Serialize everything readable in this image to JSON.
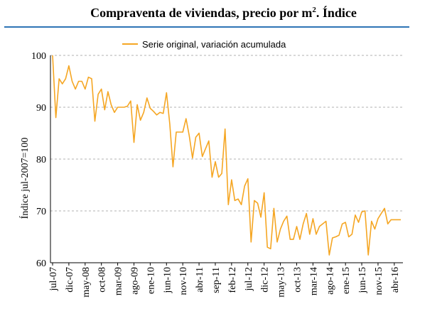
{
  "title": {
    "main": "Compraventa de viviendas, precio por m",
    "sup": "2",
    "tail": ". Índice"
  },
  "chart_data": {
    "type": "line",
    "title": "Compraventa de viviendas, precio por m². Índice",
    "ylabel": "Índice jul-2007=100",
    "xlabel": "",
    "ylim": [
      60,
      100
    ],
    "yticks": [
      60,
      70,
      80,
      90,
      100
    ],
    "grid": "horizontal-dashed",
    "legend_position": "top-center",
    "line_color": "#f5a623",
    "x_tick_labels": [
      "jul-07",
      "dic-07",
      "may-08",
      "oct-08",
      "mar-09",
      "ago-09",
      "ene-10",
      "jun-10",
      "nov-10",
      "abr-11",
      "sep-11",
      "feb-12",
      "jul-12",
      "dic-12",
      "may-13",
      "oct-13",
      "mar-14",
      "ago-14",
      "ene-15",
      "jun-15",
      "nov-15",
      "abr-16"
    ],
    "series": [
      {
        "name": "Serie original, variación acumulada",
        "values": [
          100,
          88,
          95.5,
          94.5,
          95.5,
          98,
          95,
          93.5,
          95,
          95,
          93.5,
          95.8,
          95.5,
          87.3,
          92.5,
          93.5,
          89.5,
          93,
          90.5,
          89,
          90,
          90,
          90,
          90.2,
          91.2,
          83.2,
          90.5,
          87.5,
          89,
          91.8,
          89.8,
          89.2,
          88.5,
          89,
          88.8,
          92.8,
          86.8,
          78.5,
          85.2,
          85.2,
          85.2,
          87.8,
          84.5,
          80.2,
          84.2,
          85,
          80.5,
          82,
          83.5,
          76.5,
          79.5,
          76.5,
          77.2,
          85.8,
          71.2,
          76,
          72,
          72.3,
          71.2,
          74.8,
          76.2,
          64,
          72,
          71.5,
          68.8,
          73.5,
          63,
          62.7,
          70.5,
          64,
          66.5,
          68,
          69,
          64.5,
          64.5,
          67,
          64.5,
          67.5,
          69.5,
          65.5,
          68.5,
          65.5,
          67,
          67.5,
          68,
          61.5,
          64.8,
          65,
          65.3,
          67.5,
          67.8,
          65,
          65.5,
          69.2,
          67.8,
          69.8,
          70,
          61.5,
          68,
          66.5,
          68.5,
          69.5,
          70.5,
          67.5,
          68.3,
          68.3,
          68.3,
          68.3
        ]
      }
    ]
  }
}
